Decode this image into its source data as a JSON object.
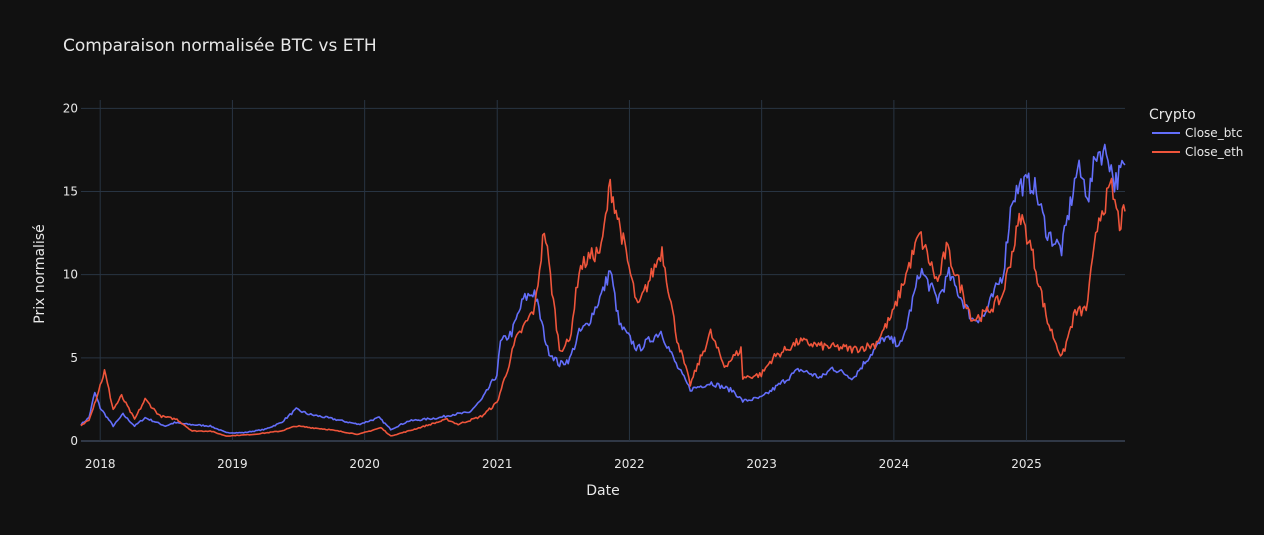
{
  "chart_data": {
    "type": "line",
    "title": "Comparaison normalisée BTC vs ETH",
    "xlabel": "Date",
    "ylabel": "Prix normalisé",
    "xlim": [
      "2017-11-09",
      "2025-09-30"
    ],
    "ylim": [
      0,
      20.5
    ],
    "x_ticks": [
      "2018",
      "2019",
      "2020",
      "2021",
      "2022",
      "2023",
      "2024",
      "2025"
    ],
    "y_ticks": [
      0,
      5,
      10,
      15,
      20
    ],
    "grid": true,
    "legend_title": "Crypto",
    "legend_position": "top-right",
    "series": [
      {
        "name": "Close_btc",
        "color": "#636efa",
        "points": [
          [
            "2017-11-09",
            1.0
          ],
          [
            "2017-12-01",
            1.4
          ],
          [
            "2017-12-17",
            2.9
          ],
          [
            "2018-01-01",
            2.0
          ],
          [
            "2018-02-06",
            0.9
          ],
          [
            "2018-03-05",
            1.6
          ],
          [
            "2018-04-06",
            0.9
          ],
          [
            "2018-05-05",
            1.4
          ],
          [
            "2018-06-30",
            0.9
          ],
          [
            "2018-07-25",
            1.1
          ],
          [
            "2018-09-01",
            1.0
          ],
          [
            "2018-11-01",
            0.9
          ],
          [
            "2018-12-15",
            0.5
          ],
          [
            "2019-02-01",
            0.5
          ],
          [
            "2019-04-01",
            0.7
          ],
          [
            "2019-05-15",
            1.1
          ],
          [
            "2019-06-26",
            1.9
          ],
          [
            "2019-08-01",
            1.6
          ],
          [
            "2019-09-20",
            1.4
          ],
          [
            "2019-12-15",
            1.0
          ],
          [
            "2020-02-10",
            1.4
          ],
          [
            "2020-03-13",
            0.7
          ],
          [
            "2020-05-01",
            1.2
          ],
          [
            "2020-07-25",
            1.4
          ],
          [
            "2020-09-01",
            1.6
          ],
          [
            "2020-10-15",
            1.7
          ],
          [
            "2020-11-20",
            2.5
          ],
          [
            "2020-12-31",
            4.0
          ],
          [
            "2021-01-10",
            5.9
          ],
          [
            "2021-02-10",
            6.5
          ],
          [
            "2021-03-14",
            8.5
          ],
          [
            "2021-04-14",
            9.0
          ],
          [
            "2021-05-20",
            5.5
          ],
          [
            "2021-06-22",
            4.6
          ],
          [
            "2021-07-20",
            4.9
          ],
          [
            "2021-08-15",
            6.5
          ],
          [
            "2021-09-07",
            7.0
          ],
          [
            "2021-10-20",
            9.0
          ],
          [
            "2021-11-09",
            10.3
          ],
          [
            "2021-12-04",
            7.0
          ],
          [
            "2022-01-24",
            5.5
          ],
          [
            "2022-03-29",
            6.6
          ],
          [
            "2022-05-10",
            4.6
          ],
          [
            "2022-06-18",
            3.1
          ],
          [
            "2022-08-15",
            3.5
          ],
          [
            "2022-10-15",
            3.0
          ],
          [
            "2022-11-10",
            2.4
          ],
          [
            "2022-12-31",
            2.6
          ],
          [
            "2023-02-01",
            3.1
          ],
          [
            "2023-04-15",
            4.3
          ],
          [
            "2023-06-15",
            3.8
          ],
          [
            "2023-07-15",
            4.4
          ],
          [
            "2023-09-11",
            3.8
          ],
          [
            "2023-10-25",
            5.1
          ],
          [
            "2023-12-05",
            6.2
          ],
          [
            "2024-01-23",
            5.8
          ],
          [
            "2024-03-14",
            10.3
          ],
          [
            "2024-05-01",
            8.5
          ],
          [
            "2024-06-01",
            10.0
          ],
          [
            "2024-08-05",
            7.3
          ],
          [
            "2024-09-06",
            7.5
          ],
          [
            "2024-10-29",
            10.1
          ],
          [
            "2024-11-22",
            14.6
          ],
          [
            "2024-12-17",
            15.4
          ],
          [
            "2025-01-20",
            15.5
          ],
          [
            "2025-02-28",
            12.5
          ],
          [
            "2025-04-08",
            11.5
          ],
          [
            "2025-05-22",
            16.4
          ],
          [
            "2025-06-22",
            14.8
          ],
          [
            "2025-07-14",
            17.4
          ],
          [
            "2025-08-14",
            17.3
          ],
          [
            "2025-09-01",
            15.5
          ],
          [
            "2025-09-30",
            16.6
          ]
        ]
      },
      {
        "name": "Close_eth",
        "color": "#ef553b",
        "points": [
          [
            "2017-11-09",
            0.9
          ],
          [
            "2017-12-01",
            1.3
          ],
          [
            "2017-12-20",
            2.5
          ],
          [
            "2018-01-13",
            4.2
          ],
          [
            "2018-02-06",
            1.9
          ],
          [
            "2018-03-01",
            2.7
          ],
          [
            "2018-04-06",
            1.3
          ],
          [
            "2018-05-05",
            2.5
          ],
          [
            "2018-06-15",
            1.5
          ],
          [
            "2018-08-01",
            1.3
          ],
          [
            "2018-09-12",
            0.6
          ],
          [
            "2018-11-01",
            0.6
          ],
          [
            "2018-12-15",
            0.3
          ],
          [
            "2019-03-01",
            0.4
          ],
          [
            "2019-05-15",
            0.6
          ],
          [
            "2019-06-26",
            0.9
          ],
          [
            "2019-09-20",
            0.7
          ],
          [
            "2019-12-15",
            0.4
          ],
          [
            "2020-02-15",
            0.8
          ],
          [
            "2020-03-13",
            0.3
          ],
          [
            "2020-05-01",
            0.6
          ],
          [
            "2020-08-15",
            1.3
          ],
          [
            "2020-09-15",
            1.0
          ],
          [
            "2020-11-20",
            1.5
          ],
          [
            "2020-12-31",
            2.3
          ],
          [
            "2021-01-25",
            4.0
          ],
          [
            "2021-02-20",
            6.0
          ],
          [
            "2021-04-15",
            8.0
          ],
          [
            "2021-05-11",
            12.8
          ],
          [
            "2021-06-22",
            5.5
          ],
          [
            "2021-07-20",
            6.0
          ],
          [
            "2021-08-15",
            10.3
          ],
          [
            "2021-09-10",
            11.0
          ],
          [
            "2021-10-15",
            11.5
          ],
          [
            "2021-11-09",
            15.4
          ],
          [
            "2021-12-15",
            12.0
          ],
          [
            "2022-01-24",
            8.0
          ],
          [
            "2022-04-01",
            11.5
          ],
          [
            "2022-05-12",
            6.2
          ],
          [
            "2022-06-18",
            3.4
          ],
          [
            "2022-08-13",
            6.5
          ],
          [
            "2022-09-20",
            4.5
          ],
          [
            "2022-11-05",
            5.5
          ],
          [
            "2022-11-10",
            3.8
          ],
          [
            "2022-12-31",
            4.0
          ],
          [
            "2023-02-01",
            5.0
          ],
          [
            "2023-04-15",
            6.0
          ],
          [
            "2023-06-15",
            5.7
          ],
          [
            "2023-08-15",
            5.6
          ],
          [
            "2023-09-11",
            5.5
          ],
          [
            "2023-11-10",
            5.8
          ],
          [
            "2023-12-28",
            7.6
          ],
          [
            "2024-03-12",
            12.4
          ],
          [
            "2024-05-01",
            9.5
          ],
          [
            "2024-05-25",
            11.6
          ],
          [
            "2024-08-05",
            7.3
          ],
          [
            "2024-09-06",
            7.6
          ],
          [
            "2024-10-25",
            8.6
          ],
          [
            "2024-12-16",
            13.6
          ],
          [
            "2025-01-15",
            11.5
          ],
          [
            "2025-02-28",
            7.2
          ],
          [
            "2025-04-09",
            5.0
          ],
          [
            "2025-05-15",
            7.7
          ],
          [
            "2025-06-15",
            7.9
          ],
          [
            "2025-07-20",
            13.5
          ],
          [
            "2025-08-24",
            15.2
          ],
          [
            "2025-09-15",
            13.0
          ],
          [
            "2025-09-30",
            13.8
          ]
        ]
      }
    ]
  }
}
